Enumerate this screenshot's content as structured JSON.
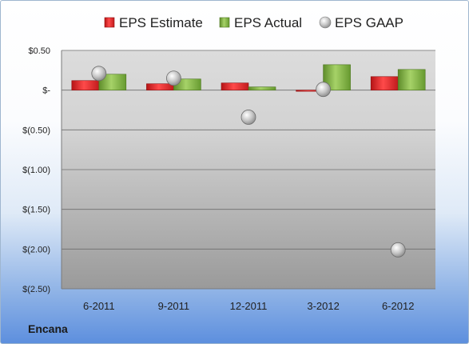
{
  "company": "Encana",
  "chart_data": {
    "type": "bar",
    "categories": [
      "6-2011",
      "9-2011",
      "12-2011",
      "3-2012",
      "6-2012"
    ],
    "series": [
      {
        "name": "EPS Estimate",
        "kind": "bar",
        "color": "#e0272a",
        "values": [
          0.12,
          0.08,
          0.09,
          -0.01,
          0.17
        ]
      },
      {
        "name": "EPS Actual",
        "kind": "bar",
        "color": "#7fb241",
        "values": [
          0.2,
          0.14,
          0.04,
          0.32,
          0.26
        ]
      },
      {
        "name": "EPS GAAP",
        "kind": "scatter",
        "color": "#b9b9b9",
        "values": [
          0.21,
          0.15,
          -0.34,
          0.01,
          -2.01
        ]
      }
    ],
    "yticks": [
      0.5,
      0,
      -0.5,
      -1.0,
      -1.5,
      -2.0,
      -2.5
    ],
    "yticklabels": [
      "$0.50",
      "$-",
      "$(0.50)",
      "$(1.00)",
      "$(1.50)",
      "$(2.00)",
      "$(2.50)"
    ],
    "ylim": [
      -2.5,
      0.5
    ],
    "grid": true,
    "legend_position": "top"
  }
}
